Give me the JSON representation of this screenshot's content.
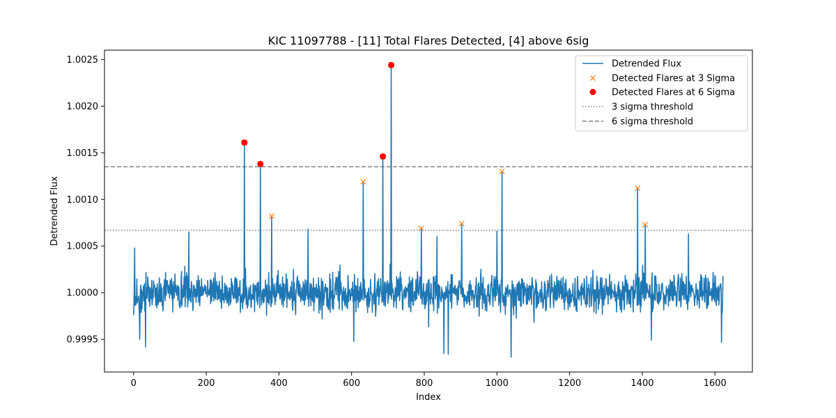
{
  "colors": {
    "flux": "#1f77b4",
    "sigma3_marker": "#ff7f0e",
    "sigma6_marker": "#ff0000",
    "threshold": "#808080",
    "legend_border": "#cccccc"
  },
  "chart_data": {
    "type": "line",
    "title": "KIC 11097788 - [11] Total Flares Detected, [4] above 6sig",
    "xlabel": "Index",
    "ylabel": "Detrended Flux",
    "xlim": [
      -80,
      1703
    ],
    "ylim": [
      0.99915,
      1.0026
    ],
    "x_ticks": [
      0,
      200,
      400,
      600,
      800,
      1000,
      1200,
      1400,
      1600
    ],
    "y_ticks": [
      0.9995,
      1.0,
      1.0005,
      1.001,
      1.0015,
      1.002,
      1.0025
    ],
    "x_tick_labels": [
      "0",
      "200",
      "400",
      "600",
      "800",
      "1000",
      "1200",
      "1400",
      "1600"
    ],
    "y_tick_labels": [
      "0.9995",
      "1.0000",
      "1.0005",
      "1.0010",
      "1.0015",
      "1.0020",
      "1.0025"
    ],
    "legend_position": "upper right",
    "grid": false,
    "series": [
      {
        "name": "Detrended Flux",
        "kind": "line",
        "n_points": 1623,
        "baseline": 1.0,
        "noise_sigma": 0.00016,
        "notable_points": [
          {
            "x": 0,
            "y": 0.99976
          },
          {
            "x": 3,
            "y": 1.00048
          },
          {
            "x": 17,
            "y": 0.9995
          },
          {
            "x": 33,
            "y": 0.99942
          },
          {
            "x": 152,
            "y": 1.00065
          },
          {
            "x": 305,
            "y": 1.00161
          },
          {
            "x": 349,
            "y": 1.00138
          },
          {
            "x": 380,
            "y": 1.00082
          },
          {
            "x": 480,
            "y": 1.00068
          },
          {
            "x": 606,
            "y": 0.99948
          },
          {
            "x": 632,
            "y": 1.00119
          },
          {
            "x": 686,
            "y": 1.00146
          },
          {
            "x": 709,
            "y": 1.00244
          },
          {
            "x": 792,
            "y": 1.00069
          },
          {
            "x": 835,
            "y": 1.0006
          },
          {
            "x": 854,
            "y": 0.99935
          },
          {
            "x": 866,
            "y": 0.99934
          },
          {
            "x": 903,
            "y": 1.00074
          },
          {
            "x": 1000,
            "y": 1.00066
          },
          {
            "x": 1014,
            "y": 1.0013
          },
          {
            "x": 1039,
            "y": 0.99931
          },
          {
            "x": 1387,
            "y": 1.00112
          },
          {
            "x": 1408,
            "y": 1.00073
          },
          {
            "x": 1425,
            "y": 0.99949
          },
          {
            "x": 1527,
            "y": 1.00063
          },
          {
            "x": 1618,
            "y": 0.99947
          },
          {
            "x": 1622,
            "y": 1.00018
          }
        ]
      },
      {
        "name": "Detected Flares at 3 Sigma",
        "kind": "scatter",
        "marker": "x",
        "points": [
          {
            "x": 305,
            "y": 1.00161
          },
          {
            "x": 349,
            "y": 1.00138
          },
          {
            "x": 380,
            "y": 1.00082
          },
          {
            "x": 632,
            "y": 1.00119
          },
          {
            "x": 686,
            "y": 1.00146
          },
          {
            "x": 709,
            "y": 1.00244
          },
          {
            "x": 792,
            "y": 1.00069
          },
          {
            "x": 903,
            "y": 1.00074
          },
          {
            "x": 1014,
            "y": 1.0013
          },
          {
            "x": 1387,
            "y": 1.00112
          },
          {
            "x": 1408,
            "y": 1.00073
          }
        ]
      },
      {
        "name": "Detected Flares at 6 Sigma",
        "kind": "scatter",
        "marker": "o",
        "points": [
          {
            "x": 305,
            "y": 1.00161
          },
          {
            "x": 349,
            "y": 1.00138
          },
          {
            "x": 686,
            "y": 1.00146
          },
          {
            "x": 709,
            "y": 1.00244
          }
        ]
      },
      {
        "name": "3 sigma threshold",
        "kind": "hline",
        "style": "dotted",
        "y": 1.00067
      },
      {
        "name": "6 sigma threshold",
        "kind": "hline",
        "style": "dashed",
        "y": 1.00135
      }
    ]
  }
}
